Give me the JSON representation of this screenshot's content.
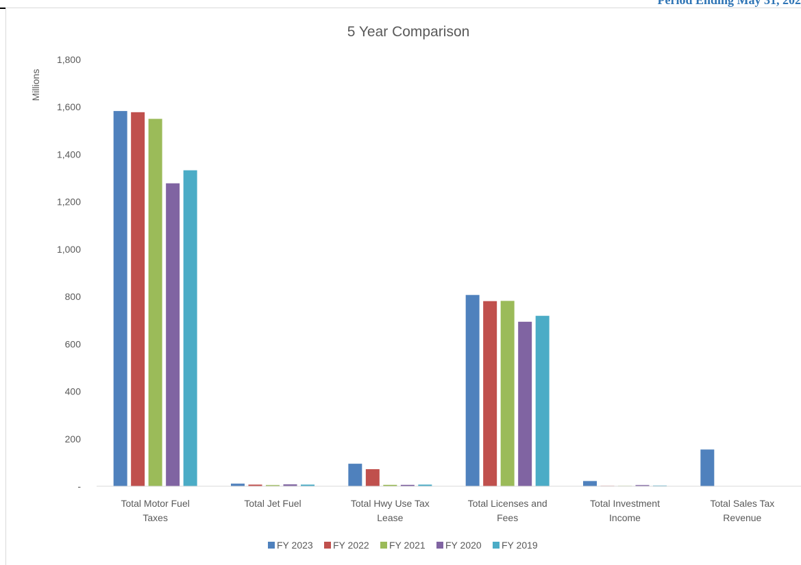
{
  "header": {
    "text": "Period Ending May 31, 202"
  },
  "chart_data": {
    "type": "bar",
    "title": "5 Year Comparison",
    "ylabel": "Millions",
    "xlabel": "",
    "ylim": [
      0,
      1800
    ],
    "yticks": [
      {
        "value": 0,
        "label": "-"
      },
      {
        "value": 200,
        "label": "200"
      },
      {
        "value": 400,
        "label": "400"
      },
      {
        "value": 600,
        "label": "600"
      },
      {
        "value": 800,
        "label": "800"
      },
      {
        "value": 1000,
        "label": "1,000"
      },
      {
        "value": 1200,
        "label": "1,200"
      },
      {
        "value": 1400,
        "label": "1,400"
      },
      {
        "value": 1600,
        "label": "1,600"
      },
      {
        "value": 1800,
        "label": "1,800"
      }
    ],
    "categories": [
      [
        "Total Motor Fuel",
        "Taxes"
      ],
      [
        "Total Jet Fuel"
      ],
      [
        "Total Hwy Use Tax",
        "Lease"
      ],
      [
        "Total Licenses and",
        "Fees"
      ],
      [
        "Total Investment",
        "Income"
      ],
      [
        "Total Sales Tax",
        "Revenue"
      ]
    ],
    "series": [
      {
        "name": "FY 2023",
        "color": "#4f81bd",
        "values": [
          1583,
          11,
          95,
          807,
          22,
          155
        ]
      },
      {
        "name": "FY 2022",
        "color": "#c0504d",
        "values": [
          1578,
          7,
          72,
          781,
          2,
          0
        ]
      },
      {
        "name": "FY 2021",
        "color": "#9bbb59",
        "values": [
          1550,
          5,
          6,
          782,
          2,
          0
        ]
      },
      {
        "name": "FY 2020",
        "color": "#8064a2",
        "values": [
          1278,
          8,
          6,
          694,
          5,
          0
        ]
      },
      {
        "name": "FY 2019",
        "color": "#4bacc6",
        "values": [
          1333,
          7,
          7,
          719,
          3,
          0
        ]
      }
    ],
    "grid": false,
    "legend": "bottom"
  }
}
